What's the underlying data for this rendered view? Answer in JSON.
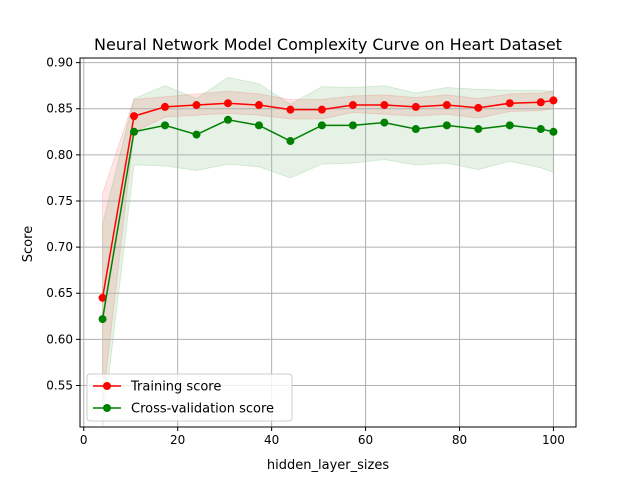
{
  "chart_data": {
    "type": "line",
    "title": "Neural Network Model Complexity Curve on Heart Dataset",
    "xlabel": "hidden_layer_sizes",
    "ylabel": "Score",
    "xlim": [
      -0.8,
      104.8
    ],
    "ylim": [
      0.505,
      0.905
    ],
    "x_ticks": [
      0,
      20,
      40,
      60,
      80,
      100
    ],
    "x_tick_labels": [
      "0",
      "20",
      "40",
      "60",
      "80",
      "100"
    ],
    "y_ticks": [
      0.55,
      0.6,
      0.65,
      0.7,
      0.75,
      0.8,
      0.85,
      0.9
    ],
    "y_tick_labels": [
      "0.55",
      "0.60",
      "0.65",
      "0.70",
      "0.75",
      "0.80",
      "0.85",
      "0.90"
    ],
    "grid": true,
    "legend_position": "lower-left",
    "x": [
      4,
      10.7,
      17.3,
      24,
      30.7,
      37.3,
      44,
      50.7,
      57.3,
      64,
      70.7,
      77.3,
      84,
      90.7,
      97.3,
      100
    ],
    "series": [
      {
        "name": "Training score",
        "color": "#ff0000",
        "marker": "circle",
        "values": [
          0.645,
          0.842,
          0.852,
          0.854,
          0.856,
          0.854,
          0.849,
          0.849,
          0.854,
          0.854,
          0.852,
          0.854,
          0.851,
          0.856,
          0.857,
          0.859
        ],
        "band_lower": [
          0.53,
          0.825,
          0.841,
          0.843,
          0.845,
          0.843,
          0.839,
          0.839,
          0.846,
          0.844,
          0.842,
          0.844,
          0.84,
          0.847,
          0.848,
          0.85
        ],
        "band_upper": [
          0.758,
          0.86,
          0.863,
          0.866,
          0.869,
          0.866,
          0.86,
          0.86,
          0.864,
          0.865,
          0.862,
          0.865,
          0.861,
          0.866,
          0.867,
          0.869
        ]
      },
      {
        "name": "Cross-validation score",
        "color": "#008000",
        "marker": "circle",
        "values": [
          0.622,
          0.825,
          0.832,
          0.822,
          0.838,
          0.832,
          0.815,
          0.832,
          0.832,
          0.835,
          0.828,
          0.832,
          0.828,
          0.832,
          0.828,
          0.825
        ],
        "band_lower": [
          0.505,
          0.789,
          0.788,
          0.783,
          0.79,
          0.787,
          0.775,
          0.79,
          0.791,
          0.795,
          0.789,
          0.791,
          0.784,
          0.793,
          0.786,
          0.781
        ],
        "band_upper": [
          0.725,
          0.861,
          0.875,
          0.861,
          0.884,
          0.877,
          0.855,
          0.874,
          0.873,
          0.875,
          0.867,
          0.873,
          0.871,
          0.87,
          0.87,
          0.869
        ]
      }
    ]
  }
}
